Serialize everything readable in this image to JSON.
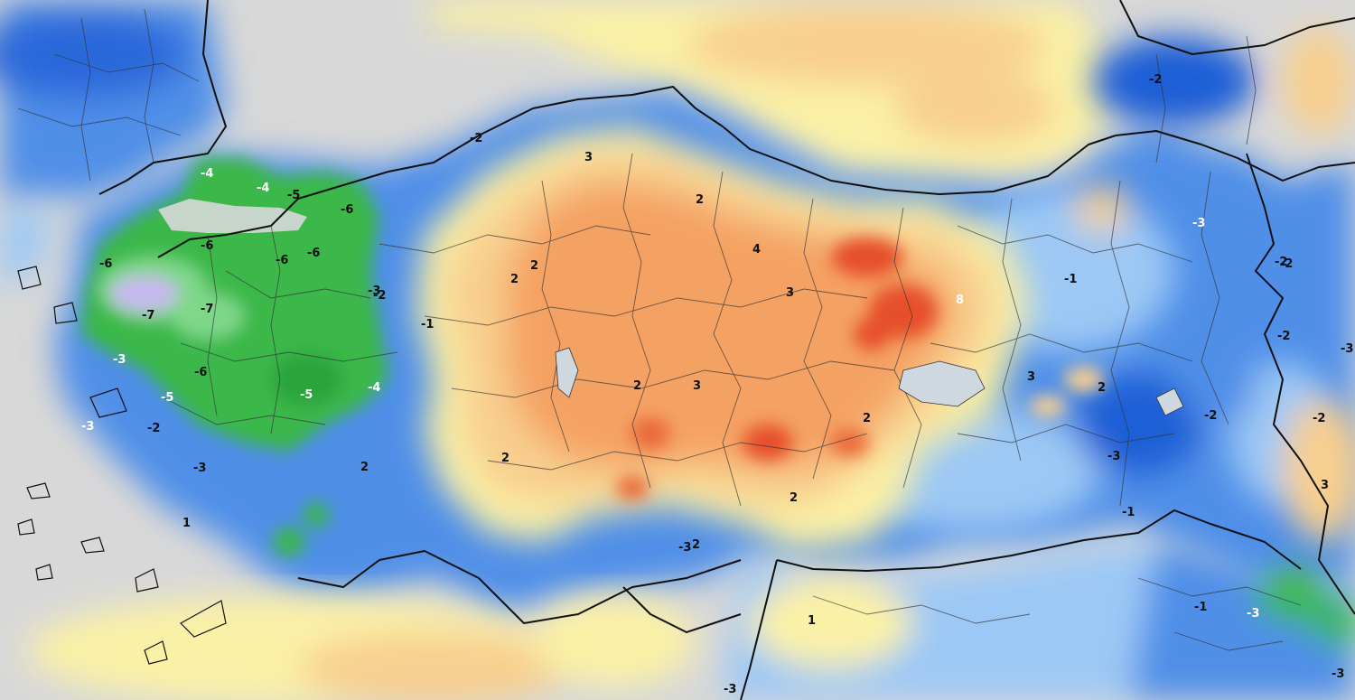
{
  "map": {
    "region": "Turkey and surroundings",
    "palette": {
      "sea": "#d8d8d8",
      "strong_negative": "#1f5fd6",
      "negative": "#4f8fe8",
      "weak_negative": "#9cc8f5",
      "near_zero": "#fbf1a6",
      "weak_positive": "#f8cf8e",
      "positive": "#f4a263",
      "strong_positive": "#e6502c",
      "very_negative_green": "#3bb84a",
      "extreme_negative_lavender": "#c7b8ee"
    },
    "labels": [
      {
        "text": "-4",
        "color": "white"
      },
      {
        "text": "-4",
        "color": "white"
      },
      {
        "text": "-5",
        "color": "dark"
      },
      {
        "text": "-6",
        "color": "dark"
      },
      {
        "text": "-6",
        "color": "dark"
      },
      {
        "text": "-6",
        "color": "dark"
      },
      {
        "text": "-6",
        "color": "dark"
      },
      {
        "text": "-6",
        "color": "dark"
      },
      {
        "text": "-7",
        "color": "dark"
      },
      {
        "text": "-7",
        "color": "dark"
      },
      {
        "text": "-3",
        "color": "dark"
      },
      {
        "text": "-2",
        "color": "dark"
      },
      {
        "text": "-3",
        "color": "white"
      },
      {
        "text": "-5",
        "color": "white"
      },
      {
        "text": "-6",
        "color": "dark"
      },
      {
        "text": "-5",
        "color": "white"
      },
      {
        "text": "-4",
        "color": "white"
      },
      {
        "text": "-3",
        "color": "white"
      },
      {
        "text": "-2",
        "color": "dark"
      },
      {
        "text": "-3",
        "color": "dark"
      },
      {
        "text": "2",
        "color": "dark"
      },
      {
        "text": "-1",
        "color": "dark"
      },
      {
        "text": "-2",
        "color": "dark"
      },
      {
        "text": "3",
        "color": "dark"
      },
      {
        "text": "2",
        "color": "dark"
      },
      {
        "text": "2",
        "color": "dark"
      },
      {
        "text": "2",
        "color": "dark"
      },
      {
        "text": "4",
        "color": "dark"
      },
      {
        "text": "3",
        "color": "dark"
      },
      {
        "text": "8",
        "color": "white"
      },
      {
        "text": "2",
        "color": "dark"
      },
      {
        "text": "3",
        "color": "dark"
      },
      {
        "text": "2",
        "color": "dark"
      },
      {
        "text": "2",
        "color": "dark"
      },
      {
        "text": "2",
        "color": "dark"
      },
      {
        "text": "-3",
        "color": "dark"
      },
      {
        "text": "2",
        "color": "dark"
      },
      {
        "text": "1",
        "color": "dark"
      },
      {
        "text": "-1",
        "color": "dark"
      },
      {
        "text": "3",
        "color": "dark"
      },
      {
        "text": "2",
        "color": "dark"
      },
      {
        "text": "-2",
        "color": "dark"
      },
      {
        "text": "-3",
        "color": "white"
      },
      {
        "text": "-2",
        "color": "dark"
      },
      {
        "text": "-2",
        "color": "dark"
      },
      {
        "text": "-2",
        "color": "dark"
      },
      {
        "text": "-2",
        "color": "dark"
      },
      {
        "text": "-3",
        "color": "dark"
      },
      {
        "text": "3",
        "color": "dark"
      },
      {
        "text": "-1",
        "color": "dark"
      },
      {
        "text": "-1",
        "color": "dark"
      },
      {
        "text": "-3",
        "color": "white"
      },
      {
        "text": "-3",
        "color": "dark"
      },
      {
        "text": "-3",
        "color": "dark"
      },
      {
        "text": "-3",
        "color": "dark"
      },
      {
        "text": "-2",
        "color": "dark"
      },
      {
        "text": "1",
        "color": "dark"
      }
    ]
  }
}
